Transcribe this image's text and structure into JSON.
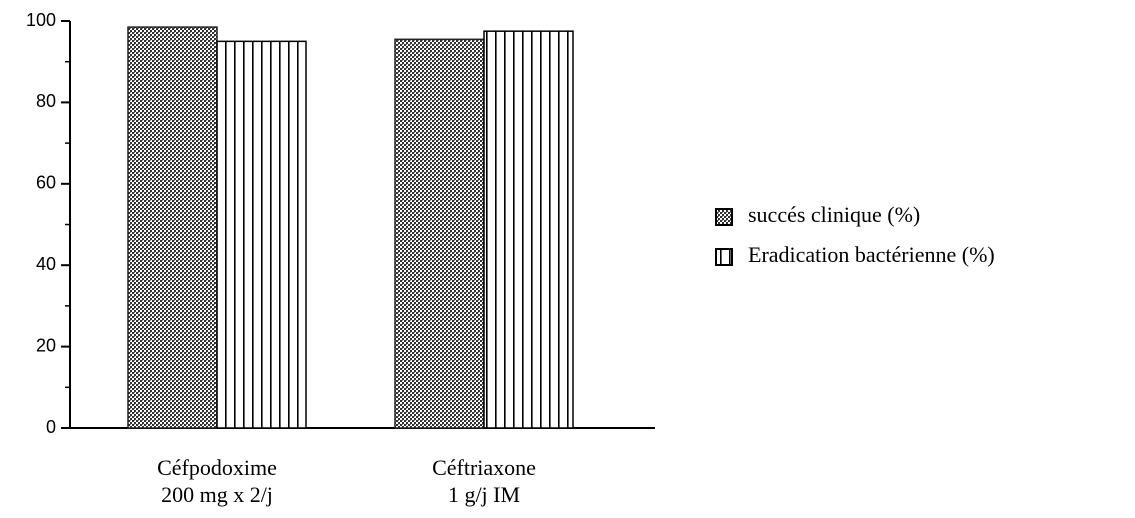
{
  "chart_data": {
    "type": "bar",
    "categories": [
      [
        "Céfpodoxime",
        "200 mg x 2/j"
      ],
      [
        "Céftriaxone",
        "1 g/j IM"
      ]
    ],
    "series": [
      {
        "name": "succés clinique (%)",
        "color": "#555555",
        "pattern": "dots",
        "values": [
          98.5,
          95.5
        ]
      },
      {
        "name": "Eradication bactérienne (%)",
        "color": "#000000",
        "pattern": "vertical-lines",
        "values": [
          95,
          97.5
        ]
      }
    ],
    "ylim": [
      0,
      100
    ],
    "yticks": [
      0,
      20,
      40,
      60,
      80,
      100
    ],
    "minor_yticks": [
      10,
      30,
      50,
      70,
      90
    ],
    "legend": "right",
    "grid": false
  }
}
